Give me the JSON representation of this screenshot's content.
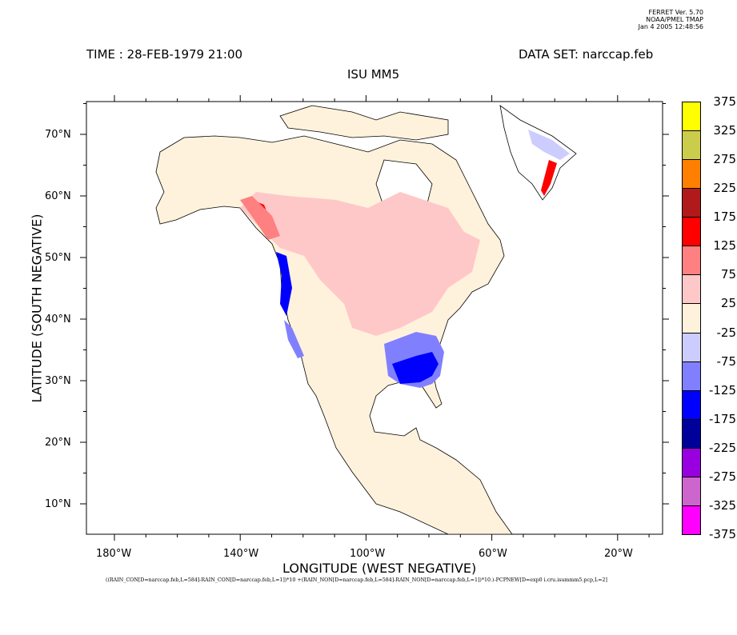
{
  "stamp": {
    "line1": "FERRET Ver. 5.70",
    "line2": "NOAA/PMEL TMAP",
    "line3": "Jan  4 2005 12:48:56"
  },
  "header": {
    "time": "TIME : 28-FEB-1979 21:00",
    "dataset": "DATA SET: narccap.feb",
    "title": "ISU MM5"
  },
  "axes": {
    "ylabel": "LATITUDE (SOUTH NEGATIVE)",
    "xlabel": "LONGITUDE (WEST NEGATIVE)",
    "yticks": [
      "70°N",
      "60°N",
      "50°N",
      "40°N",
      "30°N",
      "20°N",
      "10°N"
    ],
    "xticks": [
      "180°W",
      "140°W",
      "100°W",
      "60°W",
      "20°W"
    ]
  },
  "expression": "((RAIN_CON[D=narccap.feb,L=584]-RAIN_CON[D=narccap.feb,L=1])*10 +(RAIN_NON[D=narccap.feb,L=584]-RAIN_NON[D=narccap.feb,L=1])*10.)-PCPNEW[D=exp0 i.cru.isummm5.pcp,L=2]",
  "colorbar": {
    "labels": [
      "375",
      "325",
      "275",
      "225",
      "175",
      "125",
      "75",
      "25",
      "-25",
      "-75",
      "-125",
      "-175",
      "-225",
      "-275",
      "-325",
      "-375"
    ],
    "colors": [
      "#ffff00",
      "#cccc4c",
      "#ff8000",
      "#b01a1a",
      "#ff0000",
      "#ff8080",
      "#ffc8c8",
      "#fff2dc",
      "#ccccff",
      "#8080ff",
      "#0000ff",
      "#00009a",
      "#9900e0",
      "#cc66cc",
      "#ff00ff"
    ]
  }
}
